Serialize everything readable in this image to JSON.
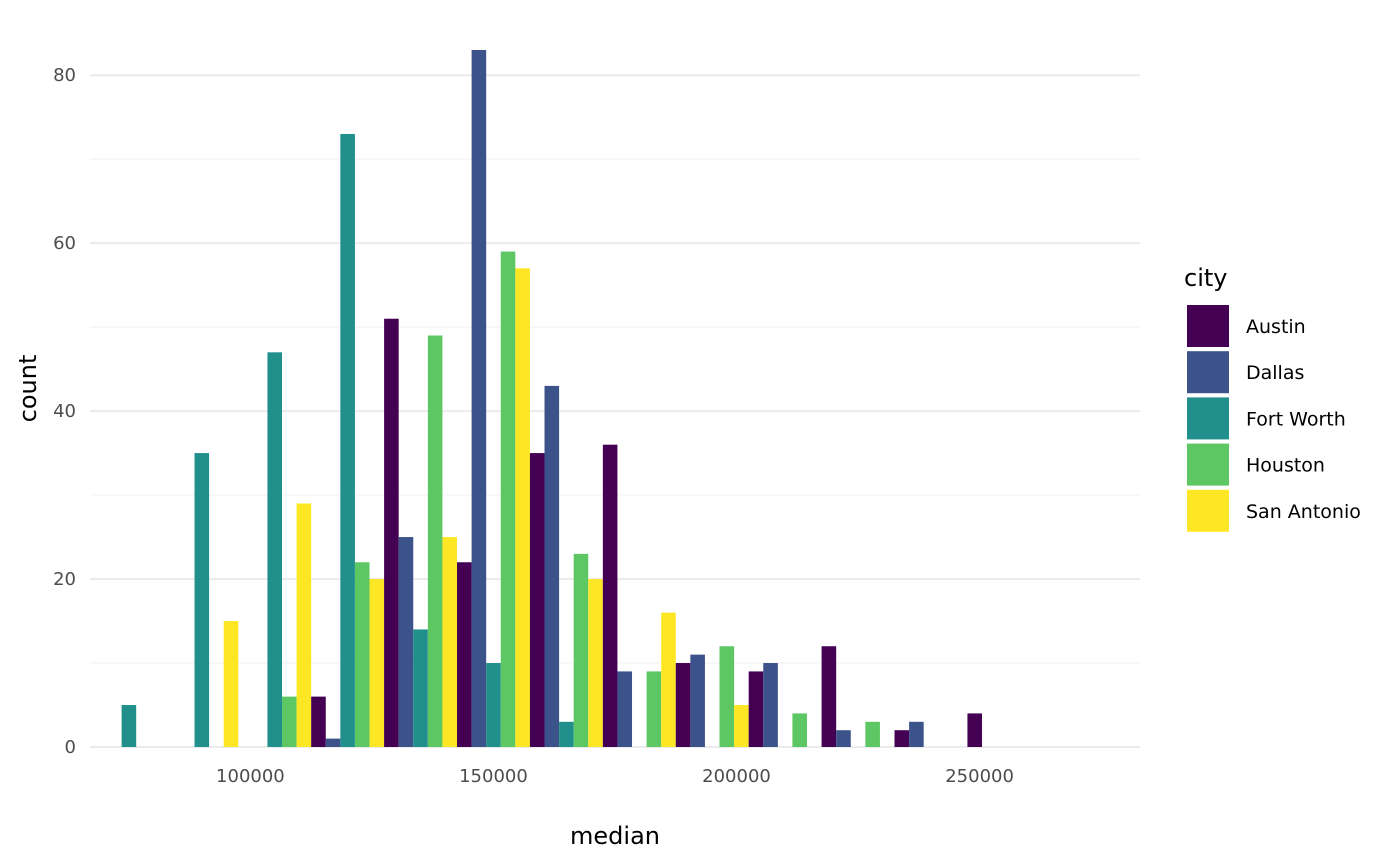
{
  "chart_data": {
    "type": "bar",
    "xlabel": "median",
    "ylabel": "count",
    "xlim": [
      67000,
      283000
    ],
    "ylim": [
      0,
      83
    ],
    "x_ticks": [
      100000,
      150000,
      200000,
      250000
    ],
    "y_ticks": [
      0,
      20,
      40,
      60,
      80
    ],
    "grid": true,
    "legend": {
      "title": "city",
      "position": "right"
    },
    "bin_width": 15000,
    "bin_centers": [
      75000,
      90000,
      105000,
      120000,
      135000,
      150000,
      165000,
      180000,
      195000,
      210000,
      225000,
      240000,
      255000,
      270000
    ],
    "series": [
      {
        "name": "Austin",
        "color": "#440154",
        "values": [
          0,
          0,
          0,
          6,
          51,
          22,
          35,
          36,
          10,
          9,
          12,
          2,
          4,
          0
        ]
      },
      {
        "name": "Dallas",
        "color": "#3B528B",
        "values": [
          0,
          0,
          0,
          1,
          25,
          83,
          43,
          9,
          11,
          10,
          2,
          3,
          0,
          0
        ]
      },
      {
        "name": "Fort Worth",
        "color": "#21908C",
        "values": [
          5,
          35,
          47,
          73,
          14,
          10,
          3,
          0,
          0,
          0,
          0,
          0,
          0,
          0
        ]
      },
      {
        "name": "Houston",
        "color": "#5DC863",
        "values": [
          0,
          0,
          6,
          22,
          49,
          59,
          23,
          9,
          12,
          4,
          3,
          0,
          0,
          0
        ]
      },
      {
        "name": "San Antonio",
        "color": "#FDE725",
        "values": [
          0,
          15,
          29,
          20,
          25,
          57,
          20,
          16,
          5,
          0,
          0,
          0,
          0,
          0
        ]
      }
    ]
  }
}
